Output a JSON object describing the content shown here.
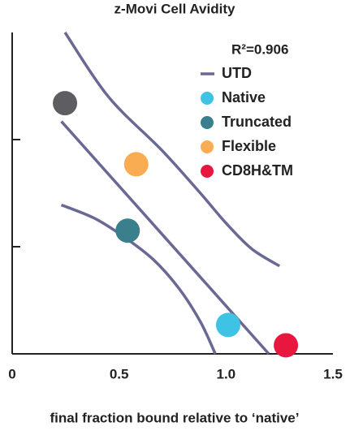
{
  "chart_data": {
    "type": "scatter",
    "title": "z-Movi Cell Avidity",
    "xlabel": "final fraction bound relative to ‘native’",
    "annotation": "R²=0.906",
    "xlim": [
      0,
      1.5
    ],
    "xticks": [
      0,
      0.5,
      {
        "value": 1,
        "label": "1.0"
      },
      1.5
    ],
    "ylim": [
      0,
      3
    ],
    "yticks": [
      1,
      2
    ],
    "series": [
      {
        "name": "UTD",
        "color": "#5e5e62",
        "x": [
          0.247
        ],
        "values": [
          2.34
        ]
      },
      {
        "name": "Native",
        "color": "#3ec3e5",
        "x": [
          1.01
        ],
        "values": [
          0.27
        ]
      },
      {
        "name": "Truncated",
        "color": "#3a7f8c",
        "x": [
          0.54
        ],
        "values": [
          1.15
        ]
      },
      {
        "name": "Flexible",
        "color": "#f9ac52",
        "x": [
          0.58
        ],
        "values": [
          1.77
        ]
      },
      {
        "name": "CD8H&TM",
        "color": "#e8173f",
        "x": [
          1.28
        ],
        "values": [
          0.08
        ]
      }
    ],
    "line_color": "#6a6894",
    "fit_lines": [
      {
        "x": [
          0.247,
          0.45,
          0.7,
          0.88,
          1.0,
          1.12,
          1.25
        ],
        "y": [
          3.0,
          2.4,
          1.9,
          1.5,
          1.22,
          0.98,
          0.82
        ]
      },
      {
        "x": [
          0.23,
          1.2
        ],
        "y": [
          2.17,
          0
        ]
      },
      {
        "x": [
          0.23,
          0.38,
          0.51,
          0.66,
          0.78,
          0.88,
          0.95
        ],
        "y": [
          1.39,
          1.27,
          1.11,
          0.88,
          0.61,
          0.3,
          0
        ]
      }
    ]
  }
}
